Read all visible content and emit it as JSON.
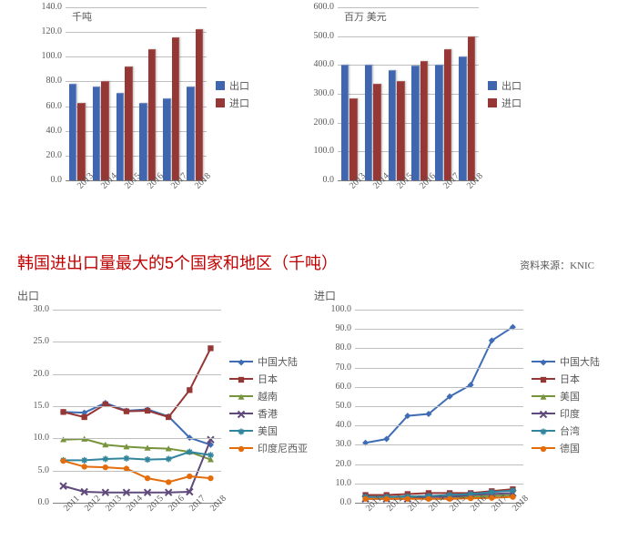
{
  "colors": {
    "export": "#4166b0",
    "import": "#953735",
    "grid": "#bfbfbf",
    "axis": "#808080",
    "text": "#595959",
    "title_red": "#c00000"
  },
  "fonts": {
    "tick": 10,
    "legend": 11,
    "unit": 11,
    "title": 18,
    "src": 11,
    "section": 12
  },
  "chart_tl": {
    "unit": "千吨",
    "categories": [
      "2013",
      "2014",
      "2015",
      "2016",
      "2017",
      "2018"
    ],
    "export_vals": [
      78,
      76,
      71,
      63,
      66,
      76
    ],
    "import_vals": [
      63,
      80,
      92,
      106,
      116,
      122
    ],
    "ylim": [
      0,
      140
    ],
    "ytick_step": 20,
    "legend": {
      "export": "出口",
      "import": "进口"
    }
  },
  "chart_tr": {
    "unit": "百万 美元",
    "categories": [
      "2013",
      "2014",
      "2015",
      "2016",
      "2017",
      "2018"
    ],
    "export_vals": [
      400,
      400,
      382,
      398,
      400,
      430
    ],
    "import_vals": [
      285,
      335,
      345,
      415,
      455,
      500
    ],
    "ylim": [
      0,
      600
    ],
    "ytick_step": 100,
    "legend": {
      "export": "出口",
      "import": "进口"
    }
  },
  "title_red": "韩国进出口量最大的5个国家和地区（千吨）",
  "source": "资料来源：KNIC",
  "chart_bl": {
    "label": "出口",
    "categories": [
      "2011",
      "2012",
      "2013",
      "2014",
      "2015",
      "2016",
      "2017",
      "2018"
    ],
    "ylim": [
      0,
      30
    ],
    "ytick_step": 5,
    "series": [
      {
        "name": "中国大陆",
        "color": "#3f6db5",
        "marker": "diamond",
        "values": [
          14.1,
          14.0,
          15.5,
          14.3,
          14.5,
          13.4,
          10.1,
          9.0
        ]
      },
      {
        "name": "日本",
        "color": "#953735",
        "marker": "square",
        "values": [
          14.1,
          13.3,
          15.3,
          14.2,
          14.3,
          13.3,
          17.5,
          24.0
        ]
      },
      {
        "name": "越南",
        "color": "#77933c",
        "marker": "triangle",
        "values": [
          9.8,
          9.9,
          9.0,
          8.7,
          8.5,
          8.4,
          7.9,
          6.7
        ]
      },
      {
        "name": "香港",
        "color": "#604a7b",
        "marker": "x",
        "values": [
          2.6,
          1.7,
          1.6,
          1.6,
          1.6,
          1.6,
          1.7,
          9.8
        ]
      },
      {
        "name": "美国",
        "color": "#31859c",
        "marker": "star",
        "values": [
          6.6,
          6.6,
          6.8,
          6.9,
          6.7,
          6.8,
          7.9,
          7.4
        ]
      },
      {
        "name": "印度尼西亚",
        "color": "#e46c0a",
        "marker": "circle",
        "values": [
          6.5,
          5.6,
          5.5,
          5.3,
          3.8,
          3.2,
          4.1,
          3.8
        ]
      }
    ]
  },
  "chart_br": {
    "label": "进口",
    "categories": [
      "2011",
      "2012",
      "2013",
      "2014",
      "2015",
      "2016",
      "2017",
      "2018"
    ],
    "ylim": [
      0,
      100
    ],
    "ytick_step": 10,
    "series": [
      {
        "name": "中国大陆",
        "color": "#3f6db5",
        "marker": "diamond",
        "values": [
          31,
          33,
          45,
          46,
          55,
          61,
          84,
          91
        ]
      },
      {
        "name": "日本",
        "color": "#953735",
        "marker": "square",
        "values": [
          4,
          4,
          4.5,
          5,
          5,
          5,
          6,
          7
        ]
      },
      {
        "name": "美国",
        "color": "#77933c",
        "marker": "triangle",
        "values": [
          3,
          3,
          3,
          3,
          3,
          3,
          3.5,
          4
        ]
      },
      {
        "name": "印度",
        "color": "#604a7b",
        "marker": "x",
        "values": [
          2,
          2,
          2,
          3,
          3,
          4,
          4.5,
          5
        ]
      },
      {
        "name": "台湾",
        "color": "#31859c",
        "marker": "star",
        "values": [
          3,
          3,
          3.3,
          3.5,
          4,
          4.5,
          5.5,
          6.3
        ]
      },
      {
        "name": "德国",
        "color": "#e46c0a",
        "marker": "circle",
        "values": [
          2,
          2,
          2,
          2,
          2,
          2.3,
          2.5,
          3
        ]
      }
    ]
  }
}
